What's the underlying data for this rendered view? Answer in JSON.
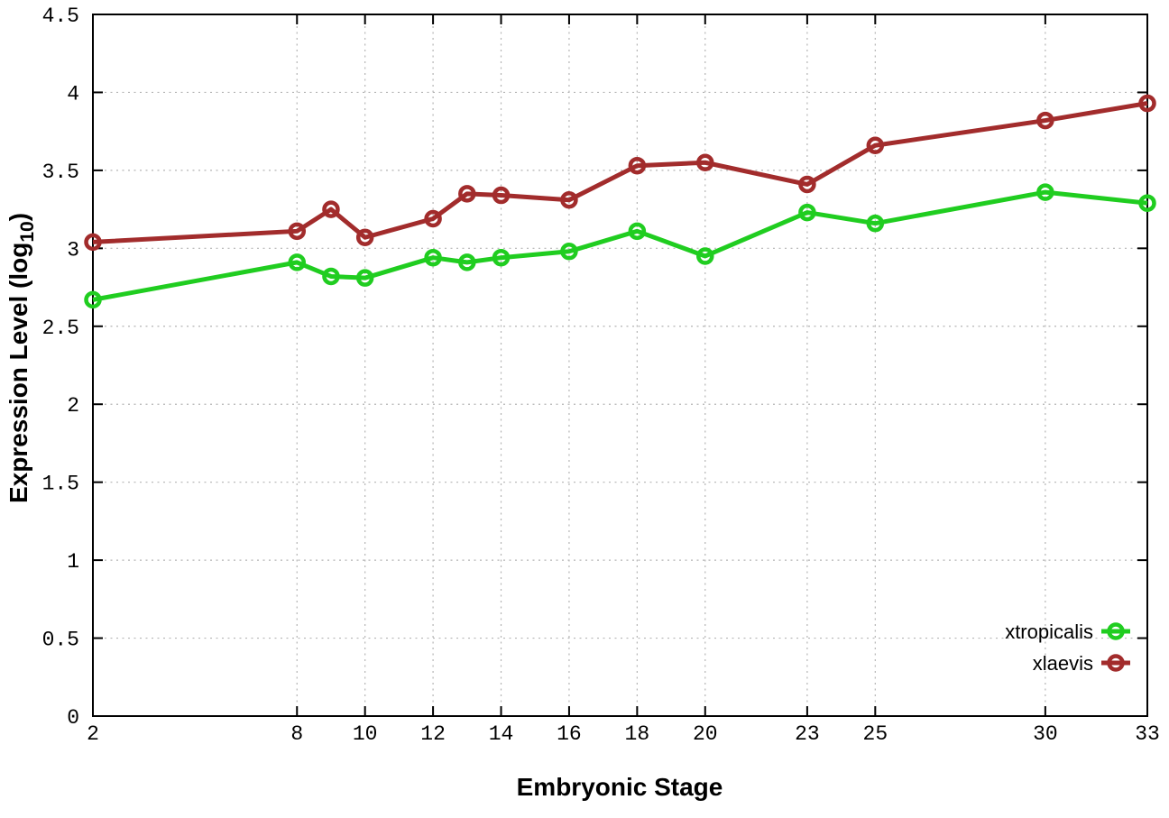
{
  "figure": {
    "background": "#ffffff",
    "border_color": "#000000",
    "grid_color": "#b4b4b4",
    "xlabel": "Embryonic Stage",
    "ylabel": {
      "main": "Expression Level (log",
      "sub": "10",
      "close": ")"
    }
  },
  "legend": {
    "position": "bottom-right",
    "entries": [
      "xtropicalis",
      "xlaevis"
    ]
  },
  "chart_data": {
    "type": "line",
    "title": "",
    "xlabel": "Embryonic Stage",
    "ylabel": "Expression Level (log10)",
    "x": [
      2,
      8,
      9,
      10,
      12,
      13,
      14,
      16,
      18,
      20,
      23,
      25,
      30,
      33
    ],
    "series": [
      {
        "name": "xtropicalis",
        "color": "#20cd20",
        "marker": "open-circle",
        "values": [
          2.67,
          2.91,
          2.82,
          2.81,
          2.94,
          2.91,
          2.94,
          2.98,
          3.11,
          2.95,
          3.23,
          3.16,
          3.36,
          3.29
        ]
      },
      {
        "name": "xlaevis",
        "color": "#a22c2c",
        "marker": "open-circle",
        "values": [
          3.04,
          3.11,
          3.25,
          3.07,
          3.19,
          3.35,
          3.34,
          3.31,
          3.53,
          3.55,
          3.41,
          3.66,
          3.82,
          3.93
        ]
      }
    ],
    "xticks": [
      2,
      8,
      10,
      12,
      14,
      16,
      18,
      20,
      23,
      25,
      30,
      33
    ],
    "yticks": [
      0,
      0.5,
      1,
      1.5,
      2,
      2.5,
      3,
      3.5,
      4,
      4.5
    ],
    "xlim": [
      2,
      33
    ],
    "ylim": [
      0,
      4.5
    ],
    "grid": true,
    "grid_style": "dotted",
    "legend_position": "bottom-right"
  }
}
